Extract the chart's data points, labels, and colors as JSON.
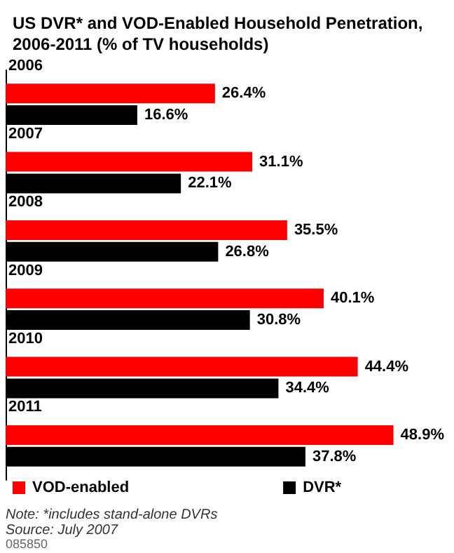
{
  "chart_data": {
    "type": "bar",
    "orientation": "horizontal",
    "title": "US DVR* and VOD-Enabled Household Penetration, 2006-2011 (% of TV households)",
    "categories": [
      "2006",
      "2007",
      "2008",
      "2009",
      "2010",
      "2011"
    ],
    "series": [
      {
        "name": "VOD-enabled",
        "color": "#ff0000",
        "values": [
          26.4,
          31.1,
          35.5,
          40.1,
          44.4,
          48.9
        ],
        "value_labels": [
          "26.4%",
          "31.1%",
          "35.5%",
          "40.1%",
          "44.4%",
          "48.9%"
        ]
      },
      {
        "name": "DVR*",
        "color": "#000000",
        "values": [
          16.6,
          22.1,
          26.8,
          30.8,
          34.4,
          37.8
        ],
        "value_labels": [
          "16.6%",
          "22.1%",
          "26.8%",
          "30.8%",
          "34.4%",
          "37.8%"
        ]
      }
    ],
    "legend": "bottom",
    "annotations": [
      "Note: *includes stand-alone DVRs",
      "Source: July 2007",
      "085850"
    ]
  }
}
